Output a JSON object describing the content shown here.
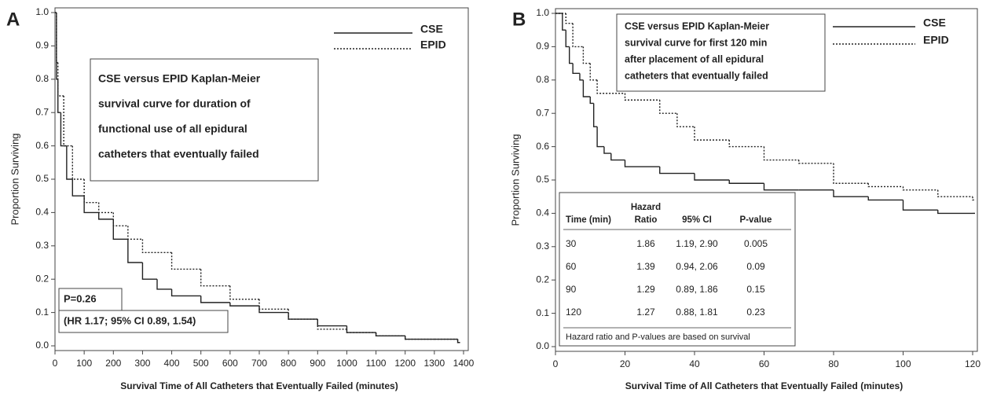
{
  "chart_data": [
    {
      "type": "step",
      "panel": "A",
      "x_label": "Survival Time of All Catheters that Eventually Failed (minutes)",
      "y_label": "Proportion Surviving",
      "xlim": [
        0,
        1400
      ],
      "xticks": [
        0,
        100,
        200,
        300,
        400,
        500,
        600,
        700,
        800,
        900,
        1000,
        1100,
        1200,
        1300,
        1400
      ],
      "ylim": [
        0,
        1
      ],
      "yticks": [
        {
          "value": 0,
          "label": "0.0"
        },
        0.1,
        0.2,
        0.3,
        0.4,
        0.5,
        0.6,
        0.7,
        0.8,
        0.9,
        {
          "value": 1,
          "label": "1.0"
        }
      ],
      "series": [
        {
          "name": "CSE",
          "color": "#222222",
          "dash": false,
          "x": [
            0,
            5,
            10,
            20,
            40,
            60,
            100,
            150,
            200,
            250,
            300,
            350,
            400,
            500,
            600,
            700,
            800,
            900,
            1000,
            1100,
            1200,
            1300,
            1380
          ],
          "values": [
            1.0,
            0.8,
            0.7,
            0.6,
            0.5,
            0.45,
            0.4,
            0.38,
            0.32,
            0.25,
            0.2,
            0.17,
            0.15,
            0.13,
            0.12,
            0.1,
            0.08,
            0.06,
            0.04,
            0.03,
            0.02,
            0.02,
            0.01
          ]
        },
        {
          "name": "EPID",
          "color": "#222222",
          "dash": true,
          "x": [
            0,
            5,
            10,
            30,
            60,
            100,
            150,
            200,
            250,
            300,
            400,
            500,
            600,
            700,
            800,
            900,
            1000,
            1100,
            1200,
            1300,
            1380
          ],
          "values": [
            1.0,
            0.85,
            0.75,
            0.6,
            0.5,
            0.43,
            0.4,
            0.36,
            0.32,
            0.28,
            0.23,
            0.18,
            0.14,
            0.11,
            0.08,
            0.05,
            0.04,
            0.03,
            0.02,
            0.02,
            0.01
          ]
        }
      ],
      "annotation": [
        "CSE versus EPID Kaplan-Meier",
        "survival curve for duration of",
        "functional use of all epidural",
        "catheters that eventually failed"
      ],
      "stats": [
        "P=0.26",
        "(HR 1.17; 95% CI 0.89, 1.54)"
      ]
    },
    {
      "type": "step",
      "panel": "B",
      "x_label": "Survival Time of All Catheters that Eventually Failed (minutes)",
      "y_label": "Proportion Surviving",
      "xlim": [
        0,
        120
      ],
      "xticks": [
        0,
        20,
        40,
        60,
        80,
        100,
        120
      ],
      "ylim": [
        0,
        1
      ],
      "yticks": [
        {
          "value": 0,
          "label": "0.0"
        },
        0.1,
        0.2,
        0.3,
        0.4,
        0.5,
        0.6,
        0.7,
        0.8,
        0.9,
        {
          "value": 1,
          "label": "1.0"
        }
      ],
      "series": [
        {
          "name": "CSE",
          "color": "#222222",
          "dash": false,
          "x": [
            0,
            2,
            3,
            4,
            5,
            7,
            8,
            10,
            11,
            12,
            14,
            16,
            20,
            30,
            40,
            50,
            60,
            70,
            80,
            90,
            100,
            110,
            120
          ],
          "values": [
            1.0,
            0.95,
            0.9,
            0.85,
            0.82,
            0.8,
            0.75,
            0.73,
            0.66,
            0.6,
            0.58,
            0.56,
            0.54,
            0.52,
            0.5,
            0.49,
            0.47,
            0.47,
            0.45,
            0.44,
            0.41,
            0.4,
            0.4
          ]
        },
        {
          "name": "EPID",
          "color": "#222222",
          "dash": true,
          "x": [
            0,
            3,
            5,
            8,
            10,
            12,
            20,
            30,
            35,
            40,
            50,
            60,
            70,
            80,
            90,
            100,
            110,
            120
          ],
          "values": [
            1.0,
            0.97,
            0.9,
            0.85,
            0.8,
            0.76,
            0.74,
            0.7,
            0.66,
            0.62,
            0.6,
            0.56,
            0.55,
            0.49,
            0.48,
            0.47,
            0.45,
            0.44
          ]
        }
      ],
      "annotation": [
        "CSE versus EPID Kaplan-Meier",
        "survival curve for first 120 min",
        "after placement of all epidural",
        "catheters that eventually failed"
      ],
      "table": {
        "columns": [
          [
            "Time (min)"
          ],
          [
            "Hazard",
            "Ratio"
          ],
          [
            "95% CI"
          ],
          [
            "P-value"
          ]
        ],
        "rows": [
          [
            30,
            1.86,
            "1.19, 2.90",
            0.005
          ],
          [
            60,
            1.39,
            "0.94, 2.06",
            0.09
          ],
          [
            90,
            1.29,
            "0.89, 1.86",
            0.15
          ],
          [
            120,
            1.27,
            "0.88, 1.81",
            0.23
          ]
        ],
        "footnote": "Hazard ratio and P-values are based on survival"
      }
    }
  ]
}
